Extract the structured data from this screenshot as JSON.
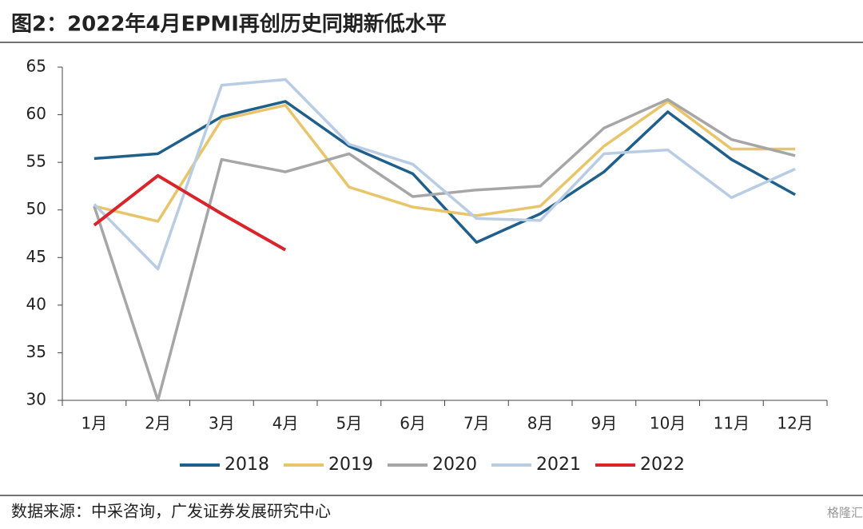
{
  "chart_data": {
    "type": "line",
    "title": "图2：2022年4月EPMI再创历史同期新低水平",
    "source": "数据来源：中采咨询，广发证券发展研究中心",
    "watermark": "格隆汇",
    "categories": [
      "1月",
      "2月",
      "3月",
      "4月",
      "5月",
      "6月",
      "7月",
      "8月",
      "9月",
      "10月",
      "11月",
      "12月"
    ],
    "series": [
      {
        "name": "2018",
        "color": "#1f5f8b",
        "values": [
          55.4,
          55.9,
          59.8,
          61.4,
          56.7,
          53.8,
          46.6,
          49.6,
          54.0,
          60.3,
          55.3,
          51.6
        ]
      },
      {
        "name": "2019",
        "color": "#e8c56a",
        "values": [
          50.4,
          48.8,
          59.5,
          61.0,
          52.4,
          50.3,
          49.4,
          50.4,
          56.7,
          61.4,
          56.4,
          56.4
        ]
      },
      {
        "name": "2020",
        "color": "#a6a6a6",
        "values": [
          50.4,
          30.0,
          55.3,
          54.0,
          55.9,
          51.4,
          52.1,
          52.5,
          58.6,
          61.6,
          57.4,
          55.7
        ]
      },
      {
        "name": "2021",
        "color": "#b8cce4",
        "values": [
          50.6,
          43.8,
          63.1,
          63.7,
          56.9,
          54.8,
          49.1,
          48.9,
          55.9,
          56.3,
          51.3,
          54.3
        ]
      },
      {
        "name": "2022",
        "color": "#d9242b",
        "values": [
          48.4,
          53.6,
          49.6,
          45.8,
          null,
          null,
          null,
          null,
          null,
          null,
          null,
          null
        ]
      }
    ],
    "ylim": [
      30,
      65
    ],
    "yticks": [
      30,
      35,
      40,
      45,
      50,
      55,
      60,
      65
    ],
    "legend": "bottom"
  }
}
